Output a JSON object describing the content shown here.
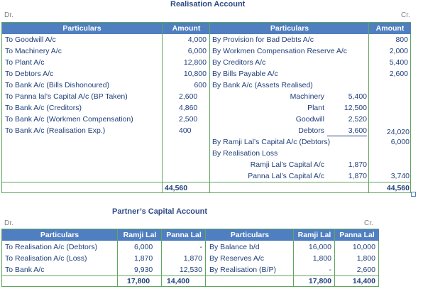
{
  "realisation": {
    "title": "Realisation Account",
    "dr": "Dr.",
    "cr": "Cr.",
    "headers": [
      "Particulars",
      "Amount",
      "Particulars",
      "Amount"
    ],
    "left": [
      {
        "p": "To Goodwill A/c",
        "a": "4,000"
      },
      {
        "p": "To Machinery A/c",
        "a": "6,000"
      },
      {
        "p": "To Plant A/c",
        "a": "12,800"
      },
      {
        "p": "To Debtors A/c",
        "a": "10,800"
      },
      {
        "p": "To Bank A/c (Bills Dishonoured)",
        "a": "600"
      },
      {
        "p": "To Panna lal’s Capital A/c (BP Taken)",
        "a": "2,600"
      },
      {
        "p": "To Bank A/c (Creditors)",
        "a": "4,860"
      },
      {
        "p": "To Bank A/c (Workmen Compensation)",
        "a": "2,500"
      },
      {
        "p": "To Bank A/c (Realisation Exp.)",
        "a": "400"
      }
    ],
    "right": [
      {
        "p": "By Provision for Bad Debts A/c",
        "a": "800"
      },
      {
        "p": "By Workmen Compensation Reserve A/c",
        "a": "2,000"
      },
      {
        "p": "By Creditors A/c",
        "a": "5,400"
      },
      {
        "p": "By Bills Payable A/c",
        "a": "2,600"
      },
      {
        "p": "By Bank A/c (Assets Realised)",
        "a": ""
      }
    ],
    "assets": [
      {
        "n": "Machinery",
        "v": "5,400"
      },
      {
        "n": "Plant",
        "v": "12,500"
      },
      {
        "n": "Goodwill",
        "v": "2,520"
      },
      {
        "n": "Debtors",
        "v": "3,600"
      }
    ],
    "assets_total": "24,020",
    "ramji_debtors": {
      "p": "By Ramji Lal’s Capital A/c (Debtors)",
      "a": "6,000"
    },
    "loss_label": "By Realisation Loss",
    "loss": [
      {
        "n": "Ramji Lal’s Capital A/c",
        "v": "1,870"
      },
      {
        "n": "Panna Lal’s Capital A/c",
        "v": "1,870"
      }
    ],
    "loss_total": "3,740",
    "total_left": "44,560",
    "total_right": "44,560"
  },
  "capital": {
    "title": "Partner’s Capital Account",
    "dr": "Dr.",
    "cr": "Cr.",
    "headers": [
      "Particulars",
      "Ramji Lal",
      "Panna Lal",
      "Particulars",
      "Ramji Lal",
      "Panna Lal"
    ],
    "left": [
      {
        "p": "To Realisation A/c (Debtors)",
        "r": "6,000",
        "pl": "-"
      },
      {
        "p": "To Realisation A/c (Loss)",
        "r": "1,870",
        "pl": "1,870"
      },
      {
        "p": "To Bank A/c",
        "r": "9,930",
        "pl": "12,530"
      }
    ],
    "right": [
      {
        "p": "By Balance b/d",
        "r": "16,000",
        "pl": "10,000"
      },
      {
        "p": "By Reserves A/c",
        "r": "1,800",
        "pl": "1,800"
      },
      {
        "p": "By Realisation (B/P)",
        "r": "-",
        "pl": "2,600"
      }
    ],
    "totals": {
      "lr": "17,800",
      "lp": "14,400",
      "rr": "17,800",
      "rp": "14,400"
    }
  }
}
